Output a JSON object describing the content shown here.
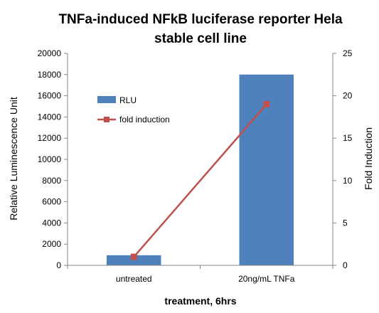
{
  "chart_data": {
    "type": "bar",
    "title_line1": "TNFa-induced NFkB luciferase reporter Hela",
    "title_line2": "stable cell line",
    "xlabel": "treatment, 6hrs",
    "ylabel": "Relative Luminescence Unit",
    "y2label": "Fold Induction",
    "categories": [
      "untreated",
      "20ng/mL TNFa"
    ],
    "ylim": [
      0,
      20000
    ],
    "yticks": [
      0,
      2000,
      4000,
      6000,
      8000,
      10000,
      12000,
      14000,
      16000,
      18000,
      20000
    ],
    "y2lim": [
      0,
      25
    ],
    "y2ticks": [
      0,
      5,
      10,
      15,
      20,
      25
    ],
    "series": [
      {
        "name": "RLU",
        "type": "bar",
        "axis": "left",
        "color": "#4F81BD",
        "values": [
          950,
          18000
        ]
      },
      {
        "name": "fold induction",
        "type": "line",
        "axis": "right",
        "color": "#C0504D",
        "values": [
          1,
          19
        ]
      }
    ],
    "legend_position": "upper-left-inside",
    "grid": false
  }
}
